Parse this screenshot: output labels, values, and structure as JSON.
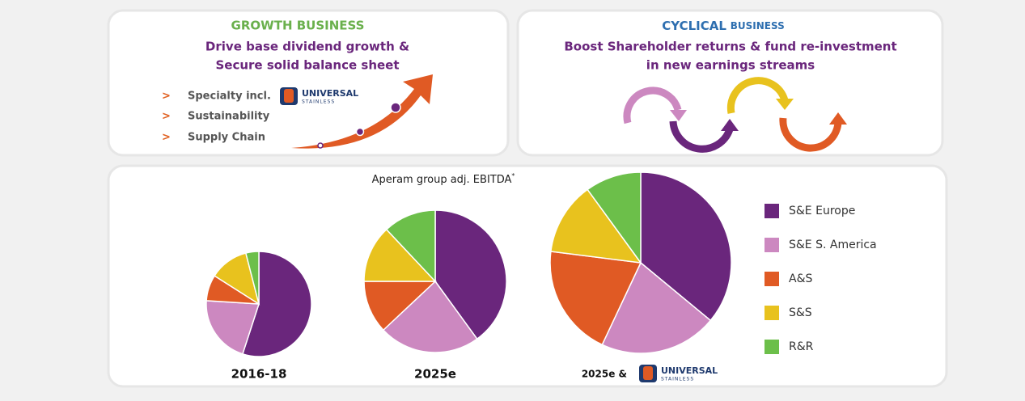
{
  "growth": {
    "heading": "GROWTH BUSINESS",
    "lines": [
      "Drive base dividend growth &",
      "Secure solid balance sheet"
    ],
    "bullet_marker": ">",
    "bullets": [
      "Specialty incl.",
      "Sustainability",
      "Supply Chain"
    ]
  },
  "cyclical": {
    "heading": "CYCLICAL",
    "heading_suffix": "BUSINESS",
    "lines": [
      "Boost Shareholder returns & fund re-investment",
      "in new earnings streams"
    ]
  },
  "logo": {
    "name": "UNIVERSAL",
    "sub": "STAINLESS"
  },
  "title": "Aperam group adj. EBITDA",
  "title_mark": "*",
  "chart_data": [
    {
      "type": "pie",
      "title": "2016-18",
      "categories": [
        "S&E Europe",
        "S&E S. America",
        "A&S",
        "S&S",
        "R&R"
      ],
      "colors": [
        "#6a267c",
        "#cc88c0",
        "#e05a24",
        "#e8c21e",
        "#6cbf4a"
      ],
      "values": [
        55,
        21,
        8,
        12,
        4
      ]
    },
    {
      "type": "pie",
      "title": "2025e",
      "values": [
        40,
        23,
        12,
        13,
        12
      ]
    },
    {
      "type": "pie",
      "title": "2025e &",
      "values": [
        36,
        21,
        20,
        13,
        10
      ]
    }
  ]
}
